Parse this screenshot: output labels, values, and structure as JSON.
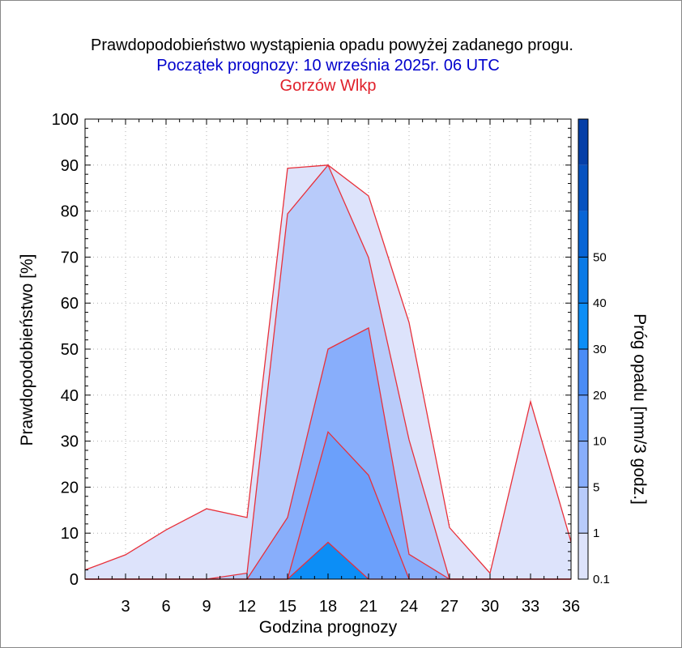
{
  "title": "Prawdopodobieństwo wystąpienia opadu powyżej zadanego progu.",
  "subtitle": "Początek prognozy: 10 września 2025r. 06 UTC",
  "location": "Gorzów Wlkp",
  "chart_data": {
    "type": "area",
    "xlabel": "Godzina prognozy",
    "ylabel": "Prawdopodobieństwo [%]",
    "xlim": [
      0,
      36
    ],
    "ylim": [
      0,
      100
    ],
    "x": [
      0,
      3,
      6,
      9,
      12,
      15,
      18,
      21,
      24,
      27,
      30,
      33,
      36
    ],
    "xticks": [
      3,
      6,
      9,
      12,
      15,
      18,
      21,
      24,
      27,
      30,
      33,
      36
    ],
    "yticks": [
      0,
      10,
      20,
      30,
      40,
      50,
      60,
      70,
      80,
      90,
      100
    ],
    "grid": true,
    "series": [
      {
        "name": "0.1",
        "color": "#dde3fb",
        "values": [
          2,
          5.3,
          10.7,
          15.3,
          13.4,
          89.3,
          90,
          83.3,
          55.8,
          11.2,
          1.3,
          38.6,
          8.1
        ]
      },
      {
        "name": "1",
        "color": "#b8cbfa",
        "values": [
          0,
          0,
          0,
          0,
          1.3,
          79.4,
          90,
          69.9,
          30.3,
          0,
          0,
          0,
          0
        ]
      },
      {
        "name": "5",
        "color": "#88aefb",
        "values": [
          0,
          0,
          0,
          0,
          0,
          13.4,
          50,
          54.6,
          5.4,
          0,
          0,
          0,
          0
        ]
      },
      {
        "name": "10",
        "color": "#6ba0fb",
        "values": [
          0,
          0,
          0,
          0,
          0,
          0,
          32,
          22.6,
          0,
          0,
          0,
          0,
          0
        ]
      },
      {
        "name": "20",
        "color": "#0c8ef6",
        "values": [
          0,
          0,
          0,
          0,
          0,
          0,
          8,
          0,
          0,
          0,
          0,
          0,
          0
        ]
      }
    ],
    "colorbar": {
      "label": "Próg opadu [mm/3 godz.]",
      "ticks": [
        "0.1",
        "1",
        "5",
        "10",
        "20",
        "30",
        "40",
        "50"
      ],
      "colors": [
        "#dde3fb",
        "#b8cbfa",
        "#88aefb",
        "#6ba0fb",
        "#4a8cf6",
        "#0c8ef6",
        "#0a7ae6",
        "#0865d6",
        "#0652c0",
        "#053fa8"
      ]
    }
  }
}
